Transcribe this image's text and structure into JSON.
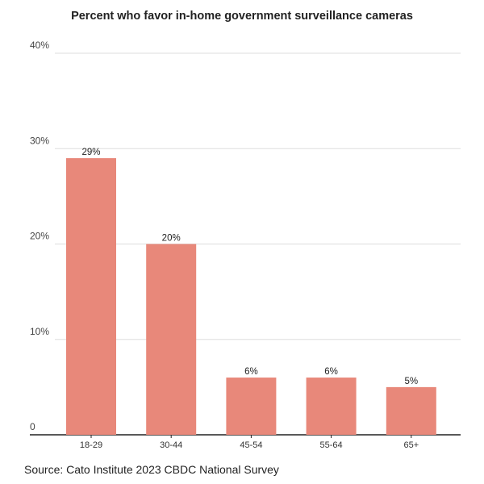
{
  "chart_data": {
    "type": "bar",
    "title": "Percent who favor in-home government surveillance cameras",
    "categories": [
      "18-29",
      "30-44",
      "45-54",
      "55-64",
      "65+"
    ],
    "values": [
      29,
      20,
      6,
      6,
      5
    ],
    "data_labels": [
      "29%",
      "20%",
      "6%",
      "6%",
      "5%"
    ],
    "y_ticks": [
      0,
      10,
      20,
      30,
      40
    ],
    "y_tick_labels": [
      "0",
      "10%",
      "20%",
      "30%",
      "40%"
    ],
    "ylim": [
      0,
      40
    ],
    "xlabel": "",
    "ylabel": "",
    "grid": true,
    "bar_color": "#e8887a",
    "grid_color": "#dddddd",
    "source": "Source: Cato Institute 2023 CBDC National Survey"
  }
}
